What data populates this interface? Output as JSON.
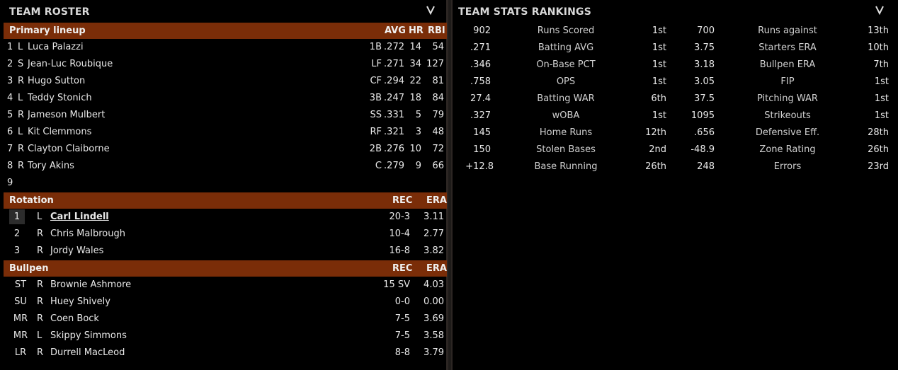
{
  "roster": {
    "title": "TEAM ROSTER",
    "lineup_header": {
      "label": "Primary lineup",
      "avg": "AVG",
      "hr": "HR",
      "rbi": "RBI"
    },
    "lineup": [
      {
        "num": "1",
        "hand": "L",
        "name": "Luca Palazzi",
        "pos": "1B",
        "avg": ".272",
        "hr": "14",
        "rbi": "54"
      },
      {
        "num": "2",
        "hand": "S",
        "name": "Jean-Luc Roubique",
        "pos": "LF",
        "avg": ".271",
        "hr": "34",
        "rbi": "127"
      },
      {
        "num": "3",
        "hand": "R",
        "name": "Hugo Sutton",
        "pos": "CF",
        "avg": ".294",
        "hr": "22",
        "rbi": "81"
      },
      {
        "num": "4",
        "hand": "L",
        "name": "Teddy Stonich",
        "pos": "3B",
        "avg": ".247",
        "hr": "18",
        "rbi": "84"
      },
      {
        "num": "5",
        "hand": "R",
        "name": "Jameson Mulbert",
        "pos": "SS",
        "avg": ".331",
        "hr": "5",
        "rbi": "79"
      },
      {
        "num": "6",
        "hand": "L",
        "name": "Kit Clemmons",
        "pos": "RF",
        "avg": ".321",
        "hr": "3",
        "rbi": "48"
      },
      {
        "num": "7",
        "hand": "R",
        "name": "Clayton Claiborne",
        "pos": "2B",
        "avg": ".276",
        "hr": "10",
        "rbi": "72"
      },
      {
        "num": "8",
        "hand": "R",
        "name": "Tory Akins",
        "pos": "C",
        "avg": ".279",
        "hr": "9",
        "rbi": "66"
      },
      {
        "num": "9",
        "hand": "",
        "name": "",
        "pos": "",
        "avg": "",
        "hr": "",
        "rbi": ""
      }
    ],
    "rotation_header": {
      "label": "Rotation",
      "rec": "REC",
      "era": "ERA"
    },
    "rotation": [
      {
        "num": "1",
        "hand": "L",
        "name": "Carl Lindell",
        "rec": "20-3",
        "era": "3.11"
      },
      {
        "num": "2",
        "hand": "R",
        "name": "Chris Malbrough",
        "rec": "10-4",
        "era": "2.77"
      },
      {
        "num": "3",
        "hand": "R",
        "name": "Jordy Wales",
        "rec": "16-8",
        "era": "3.82"
      }
    ],
    "bullpen_header": {
      "label": "Bullpen",
      "rec": "REC",
      "era": "ERA"
    },
    "bullpen": [
      {
        "role": "ST",
        "hand": "R",
        "name": "Brownie Ashmore",
        "rec": "15 SV",
        "era": "4.03"
      },
      {
        "role": "SU",
        "hand": "R",
        "name": "Huey Shively",
        "rec": "0-0",
        "era": "0.00"
      },
      {
        "role": "MR",
        "hand": "R",
        "name": "Coen Bock",
        "rec": "7-5",
        "era": "3.69"
      },
      {
        "role": "MR",
        "hand": "L",
        "name": "Skippy Simmons",
        "rec": "7-5",
        "era": "3.58"
      },
      {
        "role": "LR",
        "hand": "R",
        "name": "Durrell MacLeod",
        "rec": "8-8",
        "era": "3.79"
      }
    ]
  },
  "stats": {
    "title": "TEAM STATS RANKINGS",
    "rows": [
      {
        "v1": "902",
        "l1": "Runs Scored",
        "r1": "1st",
        "v2": "700",
        "l2": "Runs against",
        "r2": "13th"
      },
      {
        "v1": ".271",
        "l1": "Batting AVG",
        "r1": "1st",
        "v2": "3.75",
        "l2": "Starters ERA",
        "r2": "10th"
      },
      {
        "v1": ".346",
        "l1": "On-Base PCT",
        "r1": "1st",
        "v2": "3.18",
        "l2": "Bullpen ERA",
        "r2": "7th"
      },
      {
        "v1": ".758",
        "l1": "OPS",
        "r1": "1st",
        "v2": "3.05",
        "l2": "FIP",
        "r2": "1st"
      },
      {
        "v1": "27.4",
        "l1": "Batting WAR",
        "r1": "6th",
        "v2": "37.5",
        "l2": "Pitching WAR",
        "r2": "1st"
      },
      {
        "v1": ".327",
        "l1": "wOBA",
        "r1": "1st",
        "v2": "1095",
        "l2": "Strikeouts",
        "r2": "1st"
      },
      {
        "v1": "145",
        "l1": "Home Runs",
        "r1": "12th",
        "v2": ".656",
        "l2": "Defensive Eff.",
        "r2": "28th"
      },
      {
        "v1": "150",
        "l1": "Stolen Bases",
        "r1": "2nd",
        "v2": "-48.9",
        "l2": "Zone Rating",
        "r2": "26th"
      },
      {
        "v1": "+12.8",
        "l1": "Base Running",
        "r1": "26th",
        "v2": "248",
        "l2": "Errors",
        "r2": "23rd"
      }
    ]
  },
  "colors": {
    "section_bg": "#7a2d08",
    "panel_bg": "#000000",
    "app_bg": "#1e1b19"
  },
  "icons": {
    "collapse": "chevron-down-icon"
  }
}
